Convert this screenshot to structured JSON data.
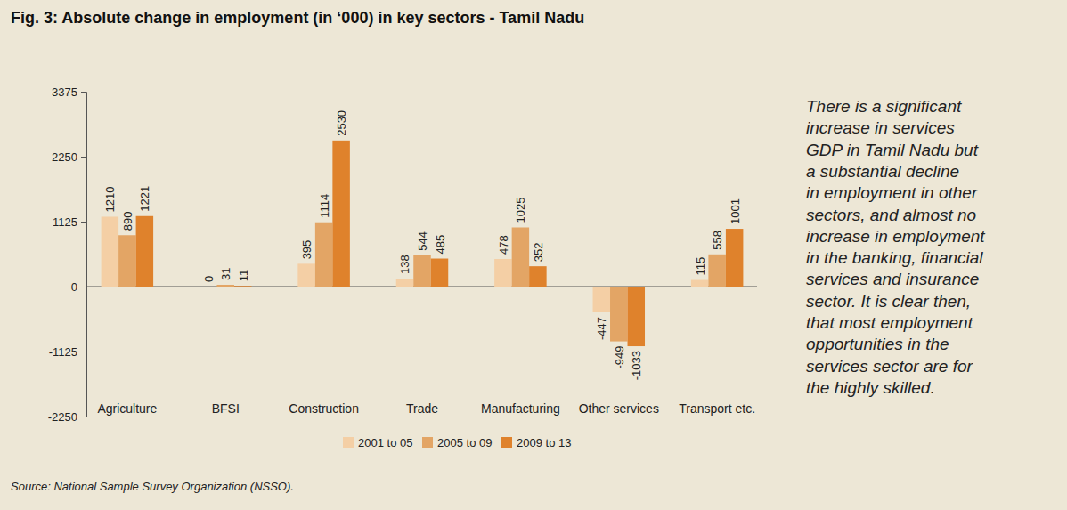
{
  "chart_data": {
    "type": "bar",
    "title": "Fig. 3: Absolute change in employment (in ‘000) in key sectors - Tamil Nadu",
    "annotation": [
      "There is a significant",
      "increase in services",
      "GDP in Tamil Nadu but",
      "a substantial decline",
      "in employment in other",
      "sectors, and almost no",
      "increase in employment",
      "in the banking, financial",
      "services and insurance",
      "sector. It is clear then,",
      "that most employment",
      "opportunities in the",
      "services sector are for",
      "the highly skilled."
    ],
    "source": "Source: National Sample Survey Organization (NSSO).",
    "categories": [
      "Agriculture",
      "BFSI",
      "Construction",
      "Trade",
      "Manufacturing",
      "Other services",
      "Transport etc."
    ],
    "series": [
      {
        "name": "2001 to 05",
        "color": "#f4cfa5",
        "values": [
          1210,
          0,
          395,
          138,
          478,
          -447,
          115
        ]
      },
      {
        "name": "2005 to 09",
        "color": "#e3a565",
        "values": [
          890,
          31,
          1114,
          544,
          1025,
          -949,
          558
        ]
      },
      {
        "name": "2009 to 13",
        "color": "#df822c",
        "values": [
          1221,
          11,
          2530,
          485,
          352,
          -1033,
          1001
        ]
      }
    ],
    "ylim": [
      -2250,
      3375
    ],
    "yticks": [
      -2250,
      -1125,
      0,
      1125,
      2250,
      3375
    ],
    "grid": false,
    "legend": "bottom",
    "data_labels": true
  }
}
